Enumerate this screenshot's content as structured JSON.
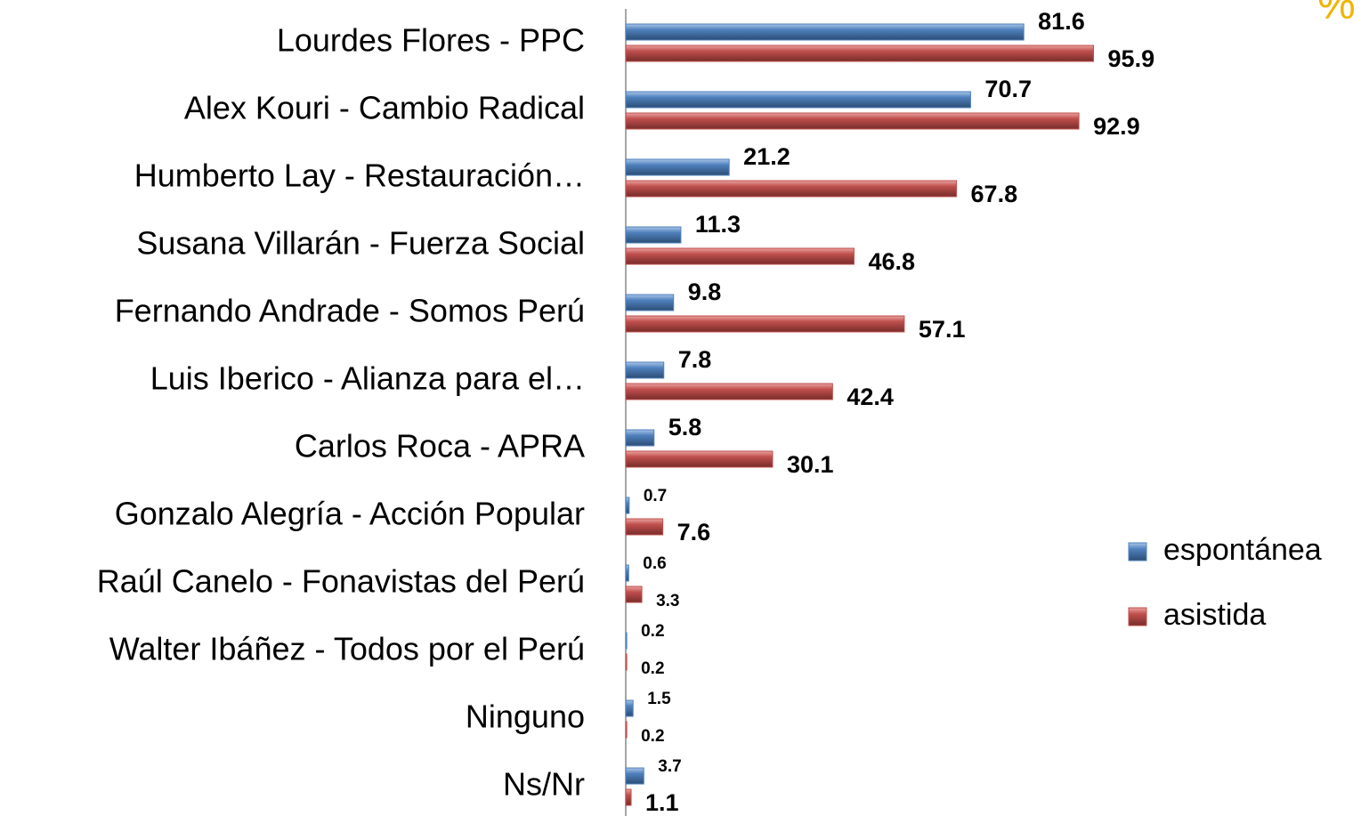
{
  "chart_data": {
    "type": "bar",
    "orientation": "horizontal",
    "annotation": "%",
    "categories": [
      "Lourdes Flores - PPC",
      "Alex Kouri - Cambio Radical",
      "Humberto Lay - Restauración…",
      "Susana Villarán - Fuerza Social",
      "Fernando Andrade - Somos Perú",
      "Luis Iberico  - Alianza para el…",
      "Carlos Roca - APRA",
      "Gonzalo Alegría - Acción Popular",
      "Raúl Canelo - Fonavistas del Perú",
      "Walter Ibáñez - Todos por el Perú",
      "Ninguno",
      "Ns/Nr"
    ],
    "series": [
      {
        "name": "espontánea",
        "color": "#4f81bd",
        "values": [
          81.6,
          70.7,
          21.2,
          11.3,
          9.8,
          7.8,
          5.8,
          0.7,
          0.6,
          0.2,
          1.5,
          3.7
        ]
      },
      {
        "name": "asistida",
        "color": "#c0504d",
        "values": [
          95.9,
          92.9,
          67.8,
          46.8,
          57.1,
          42.4,
          30.1,
          7.6,
          3.3,
          0.2,
          0.2,
          1.1
        ]
      }
    ],
    "xlim": [
      0,
      100
    ]
  }
}
